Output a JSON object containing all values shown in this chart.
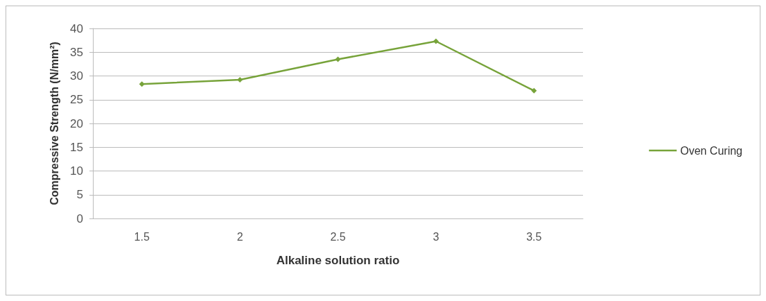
{
  "chart_data": {
    "type": "line",
    "xlabel": "Alkaline solution ratio",
    "ylabel": "Compressive Strength (N/mm²)",
    "categories": [
      "1.5",
      "2",
      "2.5",
      "3",
      "3.5"
    ],
    "series": [
      {
        "name": "Oven Curing",
        "color": "#77a33a",
        "values": [
          28.3,
          29.2,
          33.5,
          37.3,
          26.9
        ]
      }
    ],
    "ylim": [
      0,
      40
    ],
    "yticks": [
      0,
      5,
      10,
      15,
      20,
      25,
      30,
      35,
      40
    ],
    "grid": "y",
    "legend": "right",
    "marker": "diamond",
    "line_style": "solid"
  }
}
